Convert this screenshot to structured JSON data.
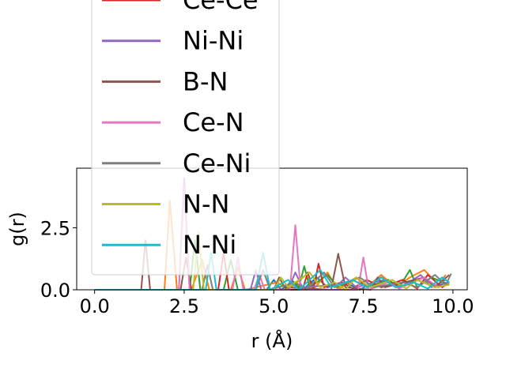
{
  "chart_data": {
    "type": "line",
    "xlabel": "r (Å)",
    "ylabel": "g(r)",
    "xlim": [
      -0.5,
      10.4
    ],
    "ylim": [
      0.0,
      4.9
    ],
    "xticks": [
      0.0,
      2.5,
      5.0,
      7.5,
      10.0
    ],
    "xtick_labels": [
      "0.0",
      "2.5",
      "5.0",
      "7.5",
      "10.0"
    ],
    "yticks": [
      0.0,
      2.5
    ],
    "ytick_labels": [
      "0.0",
      "2.5"
    ],
    "grid": false,
    "legend_position": "upper-left",
    "series": [
      {
        "color": "#1f77b4",
        "points": [
          [
            0,
            0
          ],
          [
            4.8,
            0
          ],
          [
            5.0,
            0.4
          ],
          [
            5.2,
            0
          ],
          [
            5.5,
            0.3
          ],
          [
            5.8,
            0
          ],
          [
            6.2,
            0.5
          ],
          [
            6.5,
            0.1
          ],
          [
            7.0,
            0.3
          ],
          [
            7.4,
            0
          ],
          [
            8.0,
            0.5
          ],
          [
            8.5,
            0.1
          ],
          [
            9.0,
            0.4
          ],
          [
            9.5,
            0.1
          ],
          [
            9.8,
            0.3
          ]
        ]
      },
      {
        "color": "#ff7f0e",
        "points": [
          [
            0,
            0
          ],
          [
            1.95,
            0
          ],
          [
            2.1,
            3.6
          ],
          [
            2.3,
            0
          ],
          [
            2.7,
            0
          ],
          [
            3.0,
            1.2
          ],
          [
            3.2,
            0
          ],
          [
            3.8,
            0
          ],
          [
            4.0,
            0.9
          ],
          [
            4.2,
            0
          ],
          [
            5.1,
            0.3
          ],
          [
            5.4,
            0
          ],
          [
            5.9,
            0.6
          ],
          [
            6.1,
            0
          ],
          [
            6.5,
            0.7
          ],
          [
            6.8,
            0
          ],
          [
            7.3,
            0.5
          ],
          [
            7.6,
            0.1
          ],
          [
            8.0,
            0.6
          ],
          [
            8.4,
            0.1
          ],
          [
            8.8,
            0.5
          ],
          [
            9.2,
            0.8
          ],
          [
            9.6,
            0.2
          ],
          [
            9.8,
            0.6
          ]
        ]
      },
      {
        "color": "#2ca02c",
        "points": [
          [
            0,
            0
          ],
          [
            2.65,
            0
          ],
          [
            2.8,
            2.0
          ],
          [
            2.95,
            0
          ],
          [
            3.6,
            0
          ],
          [
            3.8,
            1.2
          ],
          [
            4.0,
            0
          ],
          [
            5.3,
            0
          ],
          [
            5.5,
            0.4
          ],
          [
            5.7,
            0.1
          ],
          [
            5.85,
            0.95
          ],
          [
            6.0,
            0.1
          ],
          [
            6.5,
            0.6
          ],
          [
            6.8,
            0.1
          ],
          [
            7.2,
            0.4
          ],
          [
            7.6,
            0.1
          ],
          [
            8.2,
            0.4
          ],
          [
            8.5,
            0.1
          ],
          [
            8.8,
            0.8
          ],
          [
            9.0,
            0.1
          ],
          [
            9.4,
            0.5
          ],
          [
            9.9,
            0.2
          ]
        ]
      },
      {
        "color": "#d62728",
        "points": [
          [
            0,
            0
          ],
          [
            3.45,
            0
          ],
          [
            3.6,
            1.5
          ],
          [
            3.75,
            0
          ],
          [
            5.8,
            0
          ],
          [
            5.95,
            0.7
          ],
          [
            6.1,
            0
          ],
          [
            6.25,
            1.05
          ],
          [
            6.4,
            0.1
          ],
          [
            6.9,
            0.3
          ],
          [
            7.2,
            0.05
          ],
          [
            7.6,
            0.4
          ],
          [
            8.0,
            0.1
          ],
          [
            8.6,
            0.4
          ],
          [
            9.0,
            0.05
          ],
          [
            9.3,
            0.6
          ],
          [
            9.7,
            0.1
          ],
          [
            9.9,
            0.3
          ]
        ]
      },
      {
        "color": "#9467bd",
        "points": [
          [
            0,
            0
          ],
          [
            2.35,
            0
          ],
          [
            2.5,
            4.5
          ],
          [
            2.65,
            0
          ],
          [
            4.35,
            0
          ],
          [
            4.5,
            0.8
          ],
          [
            4.65,
            0
          ],
          [
            5.4,
            0
          ],
          [
            5.6,
            0.7
          ],
          [
            5.8,
            0.1
          ],
          [
            6.8,
            0.2
          ],
          [
            7.0,
            0.5
          ],
          [
            7.3,
            0.1
          ],
          [
            8.1,
            0.4
          ],
          [
            8.5,
            0.05
          ],
          [
            9.1,
            0.6
          ],
          [
            9.4,
            0.1
          ],
          [
            9.8,
            0.4
          ]
        ]
      },
      {
        "color": "#8c564b",
        "points": [
          [
            0,
            0
          ],
          [
            1.3,
            0
          ],
          [
            1.42,
            2.0
          ],
          [
            1.55,
            0
          ],
          [
            2.4,
            0
          ],
          [
            2.55,
            1.3
          ],
          [
            2.7,
            0
          ],
          [
            5.0,
            0
          ],
          [
            5.15,
            0.5
          ],
          [
            5.3,
            0.1
          ],
          [
            6.6,
            0
          ],
          [
            6.8,
            1.45
          ],
          [
            7.0,
            0.1
          ],
          [
            7.7,
            0
          ],
          [
            7.9,
            0.5
          ],
          [
            8.1,
            0.1
          ],
          [
            9.2,
            0.5
          ],
          [
            9.5,
            0.1
          ],
          [
            9.9,
            0.6
          ]
        ]
      },
      {
        "color": "#e377c2",
        "points": [
          [
            0,
            0
          ],
          [
            2.35,
            0
          ],
          [
            2.5,
            4.1
          ],
          [
            2.65,
            0
          ],
          [
            3.85,
            0
          ],
          [
            4.0,
            1.3
          ],
          [
            4.15,
            0
          ],
          [
            4.45,
            0
          ],
          [
            4.6,
            0.6
          ],
          [
            4.75,
            0
          ],
          [
            5.45,
            0
          ],
          [
            5.6,
            2.6
          ],
          [
            5.75,
            0
          ],
          [
            7.35,
            0
          ],
          [
            7.5,
            1.3
          ],
          [
            7.65,
            0
          ],
          [
            8.2,
            0.3
          ],
          [
            8.5,
            0.05
          ],
          [
            9.2,
            0.5
          ],
          [
            9.6,
            0.1
          ],
          [
            9.9,
            0.3
          ]
        ]
      },
      {
        "color": "#7f7f7f",
        "points": [
          [
            0,
            0
          ],
          [
            3.0,
            0
          ],
          [
            3.15,
            1.0
          ],
          [
            3.3,
            0
          ],
          [
            4.5,
            0
          ],
          [
            4.7,
            0.8
          ],
          [
            4.9,
            0
          ],
          [
            5.6,
            0.3
          ],
          [
            5.9,
            0
          ],
          [
            6.4,
            0.7
          ],
          [
            6.7,
            0.1
          ],
          [
            7.4,
            0.5
          ],
          [
            7.8,
            0.1
          ],
          [
            8.6,
            0.3
          ],
          [
            9.0,
            0.1
          ],
          [
            9.5,
            0.6
          ],
          [
            9.8,
            0.2
          ],
          [
            9.95,
            0.65
          ]
        ]
      },
      {
        "color": "#bcbd22",
        "points": [
          [
            0,
            0
          ],
          [
            2.75,
            0
          ],
          [
            2.9,
            2.3
          ],
          [
            3.05,
            0
          ],
          [
            5.0,
            0
          ],
          [
            5.2,
            0.5
          ],
          [
            5.4,
            0.1
          ],
          [
            6.0,
            0.7
          ],
          [
            6.3,
            0.1
          ],
          [
            6.7,
            0.3
          ],
          [
            7.0,
            0
          ],
          [
            7.3,
            0.5
          ],
          [
            7.7,
            0.1
          ],
          [
            8.3,
            0.4
          ],
          [
            8.7,
            0.05
          ],
          [
            9.0,
            0.4
          ],
          [
            9.5,
            0.1
          ],
          [
            9.9,
            0.2
          ]
        ]
      },
      {
        "color": "#17becf",
        "points": [
          [
            0,
            0
          ],
          [
            3.1,
            0
          ],
          [
            3.25,
            1.5
          ],
          [
            3.4,
            0
          ],
          [
            4.5,
            0
          ],
          [
            4.7,
            1.5
          ],
          [
            4.9,
            0
          ],
          [
            5.4,
            0.4
          ],
          [
            5.7,
            0
          ],
          [
            6.3,
            0.8
          ],
          [
            6.6,
            0.1
          ],
          [
            7.2,
            0.4
          ],
          [
            7.6,
            0.1
          ],
          [
            8.0,
            0.5
          ],
          [
            8.4,
            0.1
          ],
          [
            8.9,
            0.3
          ],
          [
            9.3,
            0.05
          ],
          [
            9.7,
            0.5
          ],
          [
            9.9,
            0.3
          ]
        ]
      }
    ],
    "legend": [
      {
        "label": "Ce-Ce",
        "color": "#d62728"
      },
      {
        "label": "Ni-Ni",
        "color": "#9467bd"
      },
      {
        "label": "B-N",
        "color": "#8c564b"
      },
      {
        "label": "Ce-N",
        "color": "#e377c2"
      },
      {
        "label": "Ce-Ni",
        "color": "#7f7f7f"
      },
      {
        "label": "N-N",
        "color": "#bcbd22"
      },
      {
        "label": "N-Ni",
        "color": "#17becf"
      }
    ]
  }
}
